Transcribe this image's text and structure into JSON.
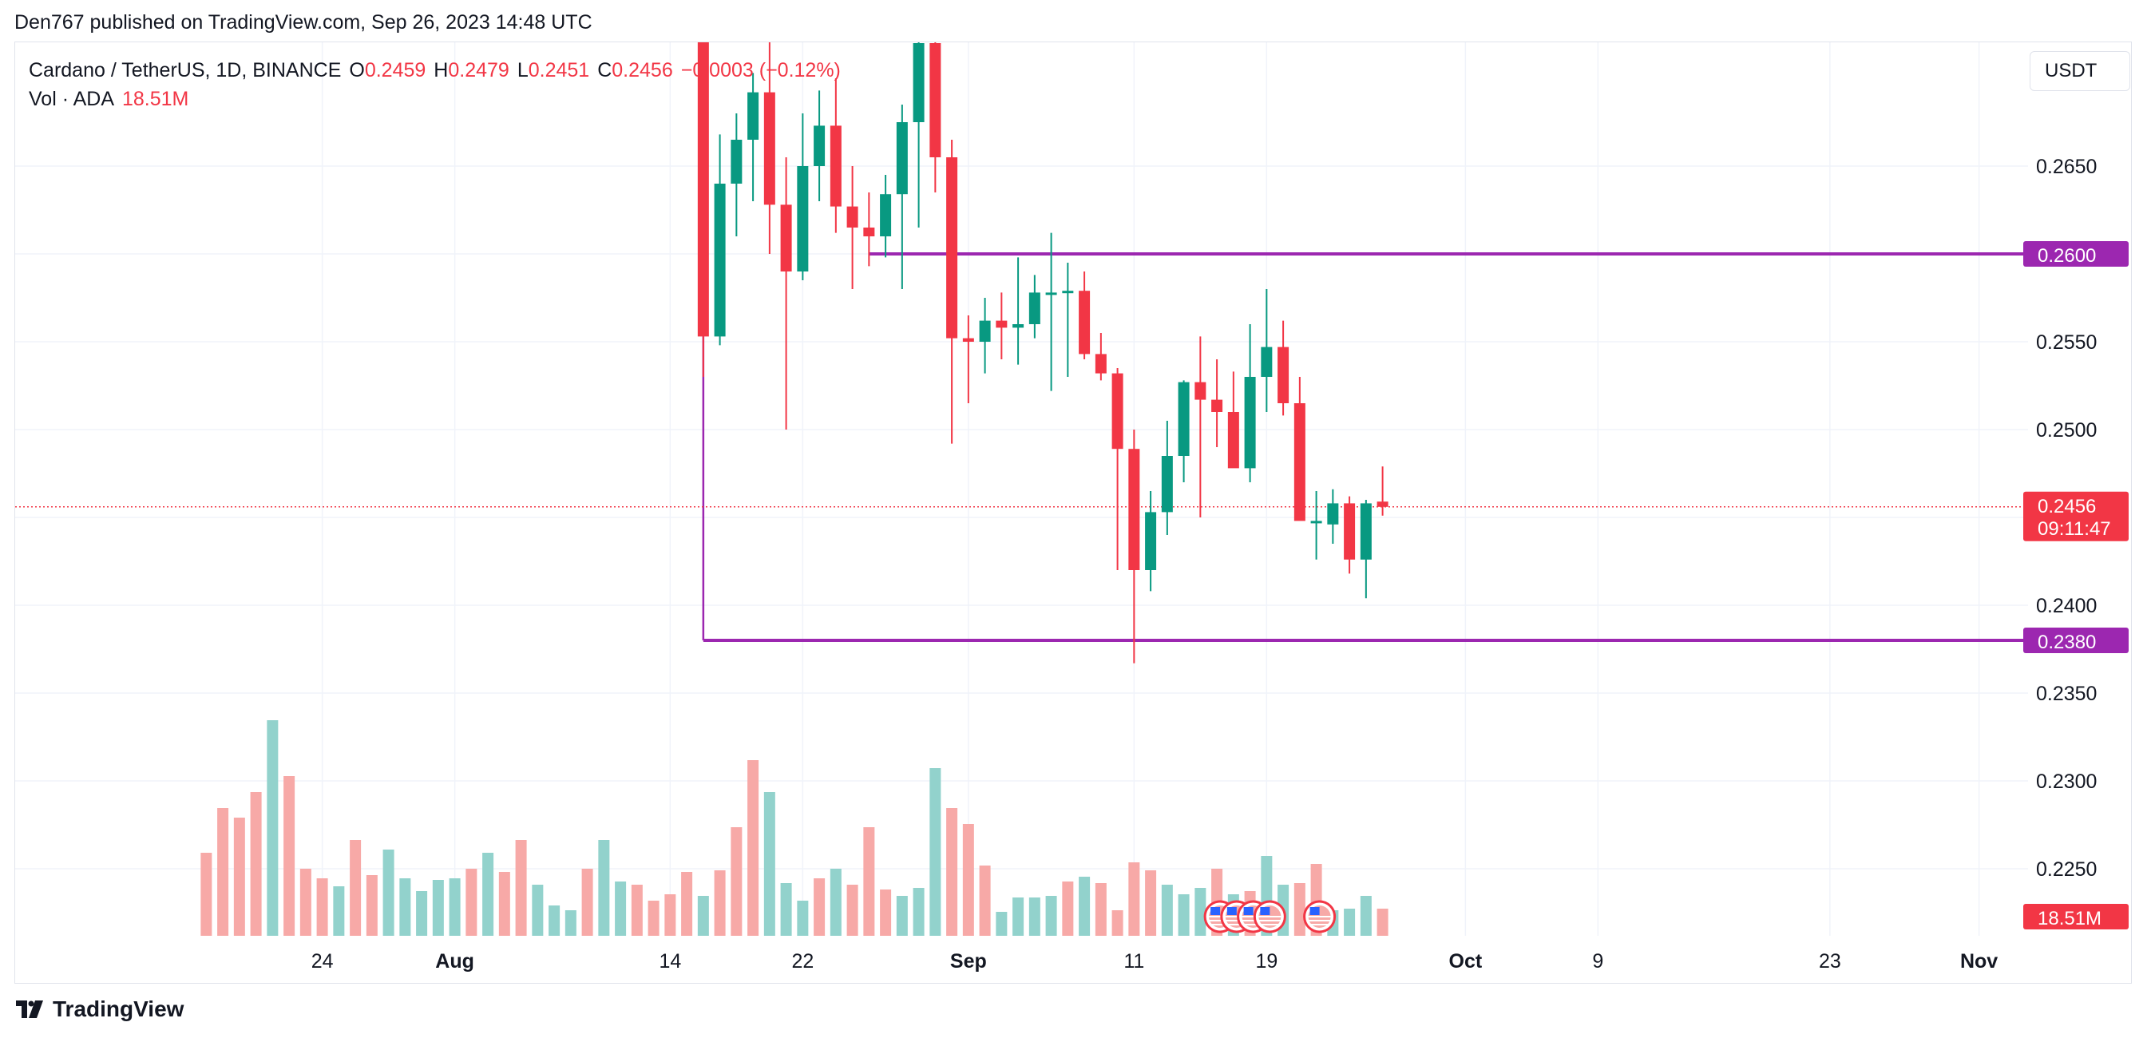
{
  "header": {
    "published": "Den767 published on TradingView.com, Sep 26, 2023 14:48 UTC"
  },
  "legend": {
    "symbol": "Cardano / TetherUS, 1D, BINANCE",
    "o_label": "O",
    "o_value": "0.2459",
    "h_label": "H",
    "h_value": "0.2479",
    "l_label": "L",
    "l_value": "0.2451",
    "c_label": "C",
    "c_value": "0.2456",
    "change": "−0.0003 (−0.12%)",
    "vol_label": "Vol · ADA",
    "vol_value": "18.51M"
  },
  "currency_button": "USDT",
  "footer": {
    "brand": "TradingView"
  },
  "colors": {
    "up": "#089981",
    "down": "#f23645",
    "level": "#9c27b0",
    "vol_up": "#92d2cc",
    "vol_down": "#f7a9a7",
    "grid": "#f0f3fa"
  },
  "chart_data": {
    "type": "candlestick",
    "ylim": [
      0.223,
      0.27
    ],
    "y_ticks": [
      "0.2650",
      "0.2600",
      "0.2550",
      "0.2500",
      "0.2450",
      "0.2400",
      "0.2350",
      "0.2300",
      "0.2250"
    ],
    "y_tick_values": [
      0.265,
      0.26,
      0.255,
      0.25,
      0.245,
      0.24,
      0.235,
      0.23,
      0.225
    ],
    "x_ticks": [
      {
        "label": "24",
        "day": 24
      },
      {
        "label": "Aug",
        "day": 32
      },
      {
        "label": "14",
        "day": 45
      },
      {
        "label": "22",
        "day": 53
      },
      {
        "label": "Sep",
        "day": 63
      },
      {
        "label": "11",
        "day": 73
      },
      {
        "label": "19",
        "day": 81
      },
      {
        "label": "Oct",
        "day": 93
      },
      {
        "label": "9",
        "day": 101
      },
      {
        "label": "23",
        "day": 115
      },
      {
        "label": "Nov",
        "day": 124
      }
    ],
    "candles_start_day": 47,
    "candles": [
      {
        "o": 0.2822,
        "h": 0.2835,
        "l": 0.253,
        "c": 0.2553
      },
      {
        "o": 0.2553,
        "h": 0.2668,
        "l": 0.2548,
        "c": 0.264
      },
      {
        "o": 0.264,
        "h": 0.268,
        "l": 0.261,
        "c": 0.2665
      },
      {
        "o": 0.2665,
        "h": 0.2703,
        "l": 0.263,
        "c": 0.2692
      },
      {
        "o": 0.2692,
        "h": 0.2725,
        "l": 0.26,
        "c": 0.2628
      },
      {
        "o": 0.2628,
        "h": 0.2655,
        "l": 0.25,
        "c": 0.259
      },
      {
        "o": 0.259,
        "h": 0.268,
        "l": 0.2585,
        "c": 0.265
      },
      {
        "o": 0.265,
        "h": 0.2693,
        "l": 0.263,
        "c": 0.2673
      },
      {
        "o": 0.2673,
        "h": 0.27,
        "l": 0.2612,
        "c": 0.2627
      },
      {
        "o": 0.2627,
        "h": 0.265,
        "l": 0.258,
        "c": 0.2615
      },
      {
        "o": 0.2615,
        "h": 0.2635,
        "l": 0.2593,
        "c": 0.261
      },
      {
        "o": 0.261,
        "h": 0.2645,
        "l": 0.2598,
        "c": 0.2634
      },
      {
        "o": 0.2634,
        "h": 0.2685,
        "l": 0.258,
        "c": 0.2675
      },
      {
        "o": 0.2675,
        "h": 0.2745,
        "l": 0.2615,
        "c": 0.272
      },
      {
        "o": 0.272,
        "h": 0.2745,
        "l": 0.2635,
        "c": 0.2655
      },
      {
        "o": 0.2655,
        "h": 0.2665,
        "l": 0.2492,
        "c": 0.2552
      },
      {
        "o": 0.2552,
        "h": 0.2565,
        "l": 0.2515,
        "c": 0.255
      },
      {
        "o": 0.255,
        "h": 0.2575,
        "l": 0.2532,
        "c": 0.2562
      },
      {
        "o": 0.2562,
        "h": 0.2578,
        "l": 0.254,
        "c": 0.2558
      },
      {
        "o": 0.2558,
        "h": 0.2598,
        "l": 0.2537,
        "c": 0.256
      },
      {
        "o": 0.256,
        "h": 0.2588,
        "l": 0.2552,
        "c": 0.2578
      },
      {
        "o": 0.2578,
        "h": 0.2612,
        "l": 0.2522,
        "c": 0.2578
      },
      {
        "o": 0.2578,
        "h": 0.2595,
        "l": 0.253,
        "c": 0.2579
      },
      {
        "o": 0.2579,
        "h": 0.259,
        "l": 0.254,
        "c": 0.2543
      },
      {
        "o": 0.2543,
        "h": 0.2555,
        "l": 0.2528,
        "c": 0.2532
      },
      {
        "o": 0.2532,
        "h": 0.2535,
        "l": 0.242,
        "c": 0.2489
      },
      {
        "o": 0.2489,
        "h": 0.25,
        "l": 0.2367,
        "c": 0.242
      },
      {
        "o": 0.242,
        "h": 0.2465,
        "l": 0.2408,
        "c": 0.2453
      },
      {
        "o": 0.2453,
        "h": 0.2505,
        "l": 0.244,
        "c": 0.2485
      },
      {
        "o": 0.2485,
        "h": 0.2528,
        "l": 0.247,
        "c": 0.2527
      },
      {
        "o": 0.2527,
        "h": 0.2553,
        "l": 0.245,
        "c": 0.2517
      },
      {
        "o": 0.2517,
        "h": 0.254,
        "l": 0.249,
        "c": 0.251
      },
      {
        "o": 0.251,
        "h": 0.2533,
        "l": 0.248,
        "c": 0.2478
      },
      {
        "o": 0.2478,
        "h": 0.256,
        "l": 0.247,
        "c": 0.253
      },
      {
        "o": 0.253,
        "h": 0.258,
        "l": 0.251,
        "c": 0.2547
      },
      {
        "o": 0.2547,
        "h": 0.2562,
        "l": 0.2508,
        "c": 0.2515
      },
      {
        "o": 0.2515,
        "h": 0.253,
        "l": 0.245,
        "c": 0.2448
      },
      {
        "o": 0.2448,
        "h": 0.2465,
        "l": 0.2426,
        "c": 0.2448
      },
      {
        "o": 0.2446,
        "h": 0.2466,
        "l": 0.2435,
        "c": 0.2458
      },
      {
        "o": 0.2458,
        "h": 0.2462,
        "l": 0.2418,
        "c": 0.2426
      },
      {
        "o": 0.2426,
        "h": 0.246,
        "l": 0.2404,
        "c": 0.2458
      },
      {
        "o": 0.2459,
        "h": 0.2479,
        "l": 0.2451,
        "c": 0.2456
      }
    ],
    "volume_start_day": 17,
    "volume_max": 1400,
    "volume": [
      {
        "v": 520,
        "up": false
      },
      {
        "v": 800,
        "up": false
      },
      {
        "v": 740,
        "up": false
      },
      {
        "v": 900,
        "up": false
      },
      {
        "v": 1350,
        "up": true
      },
      {
        "v": 1000,
        "up": false
      },
      {
        "v": 420,
        "up": false
      },
      {
        "v": 360,
        "up": false
      },
      {
        "v": 310,
        "up": true
      },
      {
        "v": 600,
        "up": false
      },
      {
        "v": 380,
        "up": false
      },
      {
        "v": 540,
        "up": true
      },
      {
        "v": 360,
        "up": true
      },
      {
        "v": 280,
        "up": true
      },
      {
        "v": 350,
        "up": true
      },
      {
        "v": 360,
        "up": true
      },
      {
        "v": 420,
        "up": false
      },
      {
        "v": 520,
        "up": true
      },
      {
        "v": 400,
        "up": false
      },
      {
        "v": 600,
        "up": false
      },
      {
        "v": 320,
        "up": true
      },
      {
        "v": 190,
        "up": true
      },
      {
        "v": 160,
        "up": true
      },
      {
        "v": 420,
        "up": false
      },
      {
        "v": 600,
        "up": true
      },
      {
        "v": 340,
        "up": true
      },
      {
        "v": 320,
        "up": false
      },
      {
        "v": 220,
        "up": false
      },
      {
        "v": 260,
        "up": false
      },
      {
        "v": 400,
        "up": false
      },
      {
        "v": 250,
        "up": true
      },
      {
        "v": 410,
        "up": false
      },
      {
        "v": 680,
        "up": false
      },
      {
        "v": 1100,
        "up": false
      },
      {
        "v": 900,
        "up": true
      },
      {
        "v": 330,
        "up": true
      },
      {
        "v": 220,
        "up": true
      },
      {
        "v": 360,
        "up": false
      },
      {
        "v": 420,
        "up": true
      },
      {
        "v": 320,
        "up": false
      },
      {
        "v": 680,
        "up": false
      },
      {
        "v": 290,
        "up": false
      },
      {
        "v": 250,
        "up": true
      },
      {
        "v": 300,
        "up": true
      },
      {
        "v": 1050,
        "up": true
      },
      {
        "v": 800,
        "up": false
      },
      {
        "v": 700,
        "up": false
      },
      {
        "v": 440,
        "up": false
      },
      {
        "v": 150,
        "up": true
      },
      {
        "v": 240,
        "up": true
      },
      {
        "v": 240,
        "up": true
      },
      {
        "v": 250,
        "up": true
      },
      {
        "v": 340,
        "up": false
      },
      {
        "v": 370,
        "up": true
      },
      {
        "v": 330,
        "up": false
      },
      {
        "v": 160,
        "up": false
      },
      {
        "v": 460,
        "up": false
      },
      {
        "v": 410,
        "up": false
      },
      {
        "v": 320,
        "up": true
      },
      {
        "v": 260,
        "up": true
      },
      {
        "v": 300,
        "up": true
      },
      {
        "v": 420,
        "up": false
      },
      {
        "v": 260,
        "up": true
      },
      {
        "v": 280,
        "up": false
      },
      {
        "v": 500,
        "up": true
      },
      {
        "v": 320,
        "up": true
      },
      {
        "v": 330,
        "up": false
      },
      {
        "v": 450,
        "up": false
      },
      {
        "v": 160,
        "up": true
      },
      {
        "v": 170,
        "up": true
      },
      {
        "v": 250,
        "up": true
      },
      {
        "v": 170,
        "up": false
      }
    ],
    "levels": [
      {
        "value": 0.26,
        "label": "0.2600",
        "start_day": 57
      },
      {
        "value": 0.238,
        "label": "0.2380",
        "start_day": 47
      }
    ],
    "vertical_ray": {
      "day": 47,
      "from": 0.27,
      "to": 0.238
    },
    "last_price": {
      "value": 0.2456,
      "label": "0.2456",
      "countdown": "09:11:47"
    },
    "volume_badge": "18.51M",
    "event_icons_days": [
      78,
      79,
      80,
      81,
      84
    ]
  }
}
